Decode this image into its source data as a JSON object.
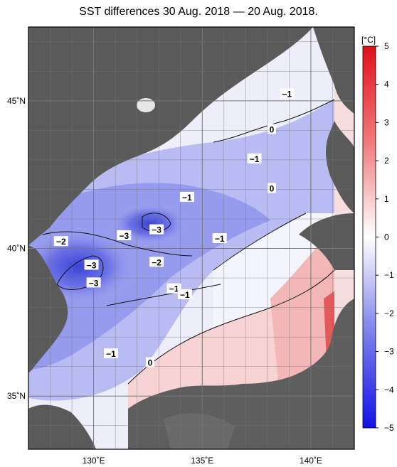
{
  "title": "SST differences 30 Aug. 2018 — 20 Aug. 2018.",
  "colorbar": {
    "unit": "[°C]",
    "ticks": [
      "5",
      "4",
      "3",
      "2",
      "1",
      "0",
      "−1",
      "−2",
      "−3",
      "−4",
      "−5"
    ]
  },
  "axes": {
    "lat_labels": [
      "45˚N",
      "40˚N",
      "35˚N"
    ],
    "lon_labels": [
      "130˚E",
      "135˚E",
      "140˚E"
    ]
  },
  "contour_labels": [
    {
      "text": "−1",
      "lon": 137.4,
      "lat": 43.0
    },
    {
      "text": "−1",
      "lon": 134.3,
      "lat": 41.7
    },
    {
      "text": "−1",
      "lon": 138.9,
      "lat": 45.2
    },
    {
      "text": "−1",
      "lon": 135.8,
      "lat": 40.3
    },
    {
      "text": "−1",
      "lon": 133.7,
      "lat": 38.6
    },
    {
      "text": "−1",
      "lon": 134.2,
      "lat": 38.4
    },
    {
      "text": "−1",
      "lon": 130.8,
      "lat": 36.4
    },
    {
      "text": "0",
      "lon": 138.2,
      "lat": 44.0
    },
    {
      "text": "0",
      "lon": 138.2,
      "lat": 42.0
    },
    {
      "text": "0",
      "lon": 132.6,
      "lat": 36.1
    },
    {
      "text": "−2",
      "lon": 128.5,
      "lat": 40.2
    },
    {
      "text": "−2",
      "lon": 132.9,
      "lat": 39.5
    },
    {
      "text": "−3",
      "lon": 131.4,
      "lat": 40.4
    },
    {
      "text": "−3",
      "lon": 132.9,
      "lat": 40.6
    },
    {
      "text": "−3",
      "lon": 129.9,
      "lat": 39.4
    },
    {
      "text": "−3",
      "lon": 130.0,
      "lat": 38.8
    }
  ]
}
